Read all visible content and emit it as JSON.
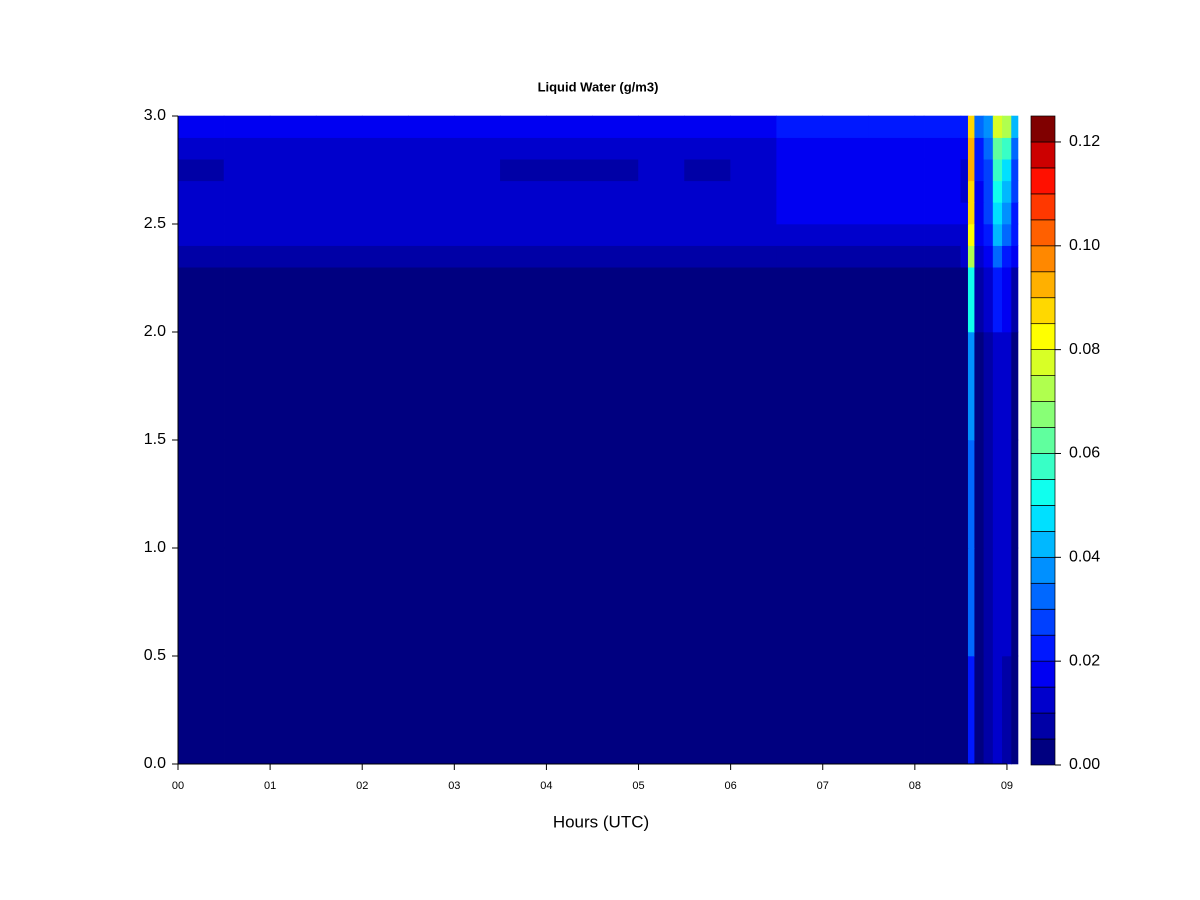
{
  "chart_data": {
    "type": "heatmap",
    "title": "Liquid Water (g/m3)",
    "x_label": "Hours (UTC)",
    "xlim": [
      0,
      9.12
    ],
    "ylim": [
      0,
      3
    ],
    "xticks": [
      {
        "value": 0,
        "label": "00"
      },
      {
        "value": 1,
        "label": "01"
      },
      {
        "value": 2,
        "label": "02"
      },
      {
        "value": 3,
        "label": "03"
      },
      {
        "value": 4,
        "label": "04"
      },
      {
        "value": 5,
        "label": "05"
      },
      {
        "value": 6,
        "label": "06"
      },
      {
        "value": 7,
        "label": "07"
      },
      {
        "value": 8,
        "label": "08"
      },
      {
        "value": 9,
        "label": "09"
      }
    ],
    "yticks": [
      {
        "value": 0,
        "label": "0.0"
      },
      {
        "value": 0.5,
        "label": "0.5"
      },
      {
        "value": 1,
        "label": "1.0"
      },
      {
        "value": 1.5,
        "label": "1.5"
      },
      {
        "value": 2,
        "label": "2.0"
      },
      {
        "value": 2.5,
        "label": "2.5"
      },
      {
        "value": 3,
        "label": "3.0"
      }
    ],
    "x": [
      0,
      0.5,
      1,
      1.5,
      2,
      2.5,
      3,
      3.5,
      4,
      4.5,
      5,
      5.5,
      6,
      6.5,
      7,
      7.5,
      8,
      8.1,
      8.5,
      8.58,
      8.65,
      8.75,
      8.85,
      8.95,
      9.05,
      9.12
    ],
    "y": [
      0,
      0.5,
      1,
      1.5,
      2,
      2.3,
      2.4,
      2.5,
      2.6,
      2.7,
      2.8,
      2.9,
      3
    ],
    "z": [
      [
        0.002,
        0.002,
        0.002,
        0.002,
        0.002,
        0.002,
        0.002,
        0.002,
        0.002,
        0.002,
        0.002,
        0.002,
        0.002,
        0.002,
        0.002,
        0.002,
        0.002,
        0.002,
        0.002,
        0.02,
        0.002,
        0.005,
        0.01,
        0.008,
        0.003
      ],
      [
        0.002,
        0.002,
        0.002,
        0.002,
        0.002,
        0.002,
        0.002,
        0.002,
        0.002,
        0.002,
        0.002,
        0.002,
        0.002,
        0.002,
        0.002,
        0.002,
        0.002,
        0.002,
        0.002,
        0.03,
        0.002,
        0.006,
        0.012,
        0.01,
        0.003
      ],
      [
        0.002,
        0.002,
        0.002,
        0.002,
        0.002,
        0.002,
        0.002,
        0.002,
        0.002,
        0.002,
        0.002,
        0.002,
        0.002,
        0.002,
        0.002,
        0.002,
        0.002,
        0.002,
        0.002,
        0.03,
        0.002,
        0.006,
        0.012,
        0.01,
        0.003
      ],
      [
        0.002,
        0.002,
        0.002,
        0.002,
        0.002,
        0.002,
        0.002,
        0.002,
        0.002,
        0.002,
        0.002,
        0.002,
        0.002,
        0.002,
        0.002,
        0.002,
        0.002,
        0.002,
        0.002,
        0.035,
        0.003,
        0.007,
        0.012,
        0.01,
        0.004
      ],
      [
        0.002,
        0.002,
        0.002,
        0.002,
        0.002,
        0.002,
        0.002,
        0.002,
        0.002,
        0.002,
        0.002,
        0.002,
        0.002,
        0.002,
        0.002,
        0.002,
        0.004,
        0.002,
        0.003,
        0.05,
        0.005,
        0.012,
        0.02,
        0.015,
        0.008
      ],
      [
        0.007,
        0.007,
        0.007,
        0.007,
        0.007,
        0.007,
        0.007,
        0.007,
        0.007,
        0.007,
        0.007,
        0.007,
        0.007,
        0.007,
        0.009,
        0.009,
        0.009,
        0.009,
        0.01,
        0.07,
        0.012,
        0.018,
        0.03,
        0.022,
        0.015
      ],
      [
        0.012,
        0.012,
        0.012,
        0.012,
        0.012,
        0.012,
        0.012,
        0.012,
        0.012,
        0.012,
        0.012,
        0.012,
        0.012,
        0.012,
        0.012,
        0.012,
        0.012,
        0.012,
        0.014,
        0.08,
        0.016,
        0.022,
        0.04,
        0.03,
        0.02
      ],
      [
        0.013,
        0.013,
        0.013,
        0.013,
        0.013,
        0.013,
        0.013,
        0.013,
        0.013,
        0.013,
        0.013,
        0.013,
        0.013,
        0.016,
        0.016,
        0.016,
        0.016,
        0.016,
        0.015,
        0.085,
        0.018,
        0.025,
        0.045,
        0.035,
        0.022
      ],
      [
        0.012,
        0.012,
        0.012,
        0.012,
        0.012,
        0.012,
        0.012,
        0.012,
        0.012,
        0.012,
        0.012,
        0.012,
        0.012,
        0.015,
        0.015,
        0.015,
        0.015,
        0.015,
        0.014,
        0.085,
        0.018,
        0.025,
        0.05,
        0.04,
        0.025
      ],
      [
        0.008,
        0.011,
        0.011,
        0.011,
        0.011,
        0.011,
        0.011,
        0.008,
        0.008,
        0.008,
        0.011,
        0.008,
        0.011,
        0.015,
        0.015,
        0.015,
        0.015,
        0.015,
        0.014,
        0.09,
        0.02,
        0.028,
        0.055,
        0.045,
        0.028
      ],
      [
        0.012,
        0.012,
        0.012,
        0.012,
        0.012,
        0.012,
        0.012,
        0.012,
        0.012,
        0.012,
        0.012,
        0.012,
        0.012,
        0.017,
        0.017,
        0.017,
        0.017,
        0.017,
        0.016,
        0.09,
        0.022,
        0.03,
        0.06,
        0.055,
        0.03
      ],
      [
        0.015,
        0.015,
        0.015,
        0.015,
        0.015,
        0.015,
        0.015,
        0.015,
        0.015,
        0.015,
        0.015,
        0.015,
        0.015,
        0.022,
        0.022,
        0.022,
        0.022,
        0.022,
        0.02,
        0.085,
        0.03,
        0.035,
        0.075,
        0.07,
        0.04
      ]
    ],
    "levels": [
      0,
      0.005,
      0.01,
      0.015,
      0.02,
      0.025,
      0.03,
      0.035,
      0.04,
      0.045,
      0.05,
      0.055,
      0.06,
      0.065,
      0.07,
      0.075,
      0.08,
      0.085,
      0.09,
      0.095,
      0.1,
      0.105,
      0.11,
      0.115,
      0.12,
      0.125
    ],
    "colors": [
      "#000080",
      "#0000a6",
      "#0000cc",
      "#0000f2",
      "#0018ff",
      "#0040ff",
      "#0068ff",
      "#0090ff",
      "#00b8ff",
      "#00e0ff",
      "#10ffee",
      "#38ffc6",
      "#60ff9e",
      "#88ff76",
      "#b0ff4e",
      "#d8ff26",
      "#ffff00",
      "#ffd800",
      "#ffb000",
      "#ff8800",
      "#ff6000",
      "#ff3800",
      "#ff1000",
      "#cc0000",
      "#800000"
    ],
    "colorbar_ticks": [
      {
        "value": 0,
        "label": "0.00"
      },
      {
        "value": 0.02,
        "label": "0.02"
      },
      {
        "value": 0.04,
        "label": "0.04"
      },
      {
        "value": 0.06,
        "label": "0.06"
      },
      {
        "value": 0.08,
        "label": "0.08"
      },
      {
        "value": 0.1,
        "label": "0.10"
      },
      {
        "value": 0.12,
        "label": "0.12"
      }
    ]
  }
}
